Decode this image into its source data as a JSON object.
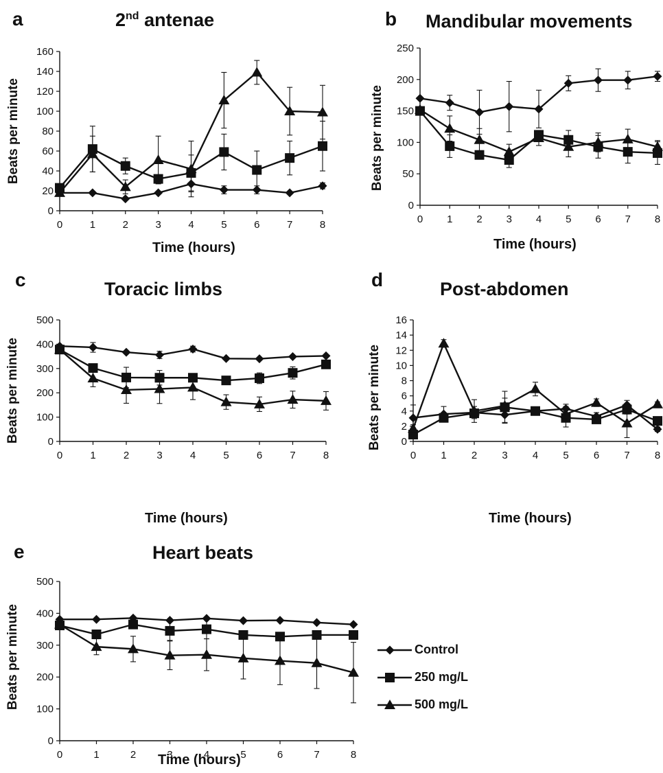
{
  "colors": {
    "line": "#111111",
    "background": "#ffffff"
  },
  "legend": [
    {
      "name": "Control",
      "marker": "diamond"
    },
    {
      "name": "250 mg/L",
      "marker": "square"
    },
    {
      "name": "500 mg/L",
      "marker": "triangle"
    }
  ],
  "chart_data": [
    {
      "panel": "a",
      "type": "line",
      "title": "2",
      "title_sup": "nd",
      "title_rest": " antenae",
      "xlabel": "Time (hours)",
      "ylabel": "Beats per minute",
      "x": [
        0,
        1,
        2,
        3,
        4,
        5,
        6,
        7,
        8
      ],
      "xlim": [
        0,
        8
      ],
      "ylim": [
        0,
        160
      ],
      "yticks": [
        0,
        20,
        40,
        60,
        80,
        100,
        120,
        140,
        160
      ],
      "series": [
        {
          "name": "Control",
          "marker": "diamond",
          "values": [
            18,
            18,
            12,
            18,
            27,
            21,
            21,
            18,
            25
          ],
          "errors": [
            0,
            0,
            0,
            0,
            8,
            4,
            4,
            0,
            3
          ]
        },
        {
          "name": "250 mg/L",
          "marker": "square",
          "values": [
            23,
            62,
            45,
            32,
            38,
            59,
            41,
            53,
            65
          ],
          "errors": [
            0,
            23,
            8,
            0,
            18,
            18,
            19,
            17,
            25
          ]
        },
        {
          "name": "500 mg/L",
          "marker": "triangle",
          "values": [
            18,
            57,
            24,
            51,
            42,
            111,
            139,
            100,
            99
          ],
          "errors": [
            0,
            18,
            7,
            24,
            28,
            28,
            12,
            24,
            27
          ]
        }
      ]
    },
    {
      "panel": "b",
      "type": "line",
      "title": "Mandibular movements",
      "xlabel": "Time (hours)",
      "ylabel": "Beats per minute",
      "x": [
        0,
        1,
        2,
        3,
        4,
        5,
        6,
        7,
        8
      ],
      "xlim": [
        0,
        8
      ],
      "ylim": [
        0,
        250
      ],
      "yticks": [
        0,
        50,
        100,
        150,
        200,
        250
      ],
      "series": [
        {
          "name": "Control",
          "marker": "diamond",
          "values": [
            170,
            163,
            148,
            157,
            153,
            194,
            199,
            199,
            205
          ],
          "errors": [
            0,
            12,
            35,
            40,
            30,
            12,
            18,
            14,
            8
          ]
        },
        {
          "name": "250 mg/L",
          "marker": "square",
          "values": [
            150,
            94,
            80,
            72,
            112,
            104,
            93,
            85,
            83
          ],
          "errors": [
            0,
            18,
            0,
            12,
            0,
            15,
            18,
            18,
            18
          ]
        },
        {
          "name": "500 mg/L",
          "marker": "triangle",
          "values": [
            152,
            122,
            104,
            85,
            107,
            93,
            100,
            105,
            93
          ],
          "errors": [
            0,
            20,
            18,
            12,
            12,
            16,
            15,
            16,
            10
          ]
        }
      ]
    },
    {
      "panel": "c",
      "type": "line",
      "title": "Toracic limbs",
      "xlabel": "Time (hours)",
      "ylabel": "Beats per minute",
      "x": [
        0,
        1,
        2,
        3,
        4,
        5,
        6,
        7,
        8
      ],
      "xlim": [
        0,
        8
      ],
      "ylim": [
        0,
        500
      ],
      "yticks": [
        0,
        100,
        200,
        300,
        400,
        500
      ],
      "series": [
        {
          "name": "Control",
          "marker": "diamond",
          "values": [
            392,
            387,
            367,
            356,
            380,
            341,
            340,
            349,
            352
          ],
          "errors": [
            0,
            20,
            0,
            15,
            12,
            0,
            0,
            0,
            0
          ]
        },
        {
          "name": "250 mg/L",
          "marker": "square",
          "values": [
            378,
            302,
            263,
            262,
            262,
            251,
            260,
            282,
            317
          ],
          "errors": [
            0,
            0,
            42,
            30,
            0,
            0,
            22,
            25,
            0
          ]
        },
        {
          "name": "500 mg/L",
          "marker": "triangle",
          "values": [
            378,
            260,
            212,
            216,
            222,
            162,
            153,
            172,
            167
          ],
          "errors": [
            0,
            35,
            55,
            60,
            50,
            30,
            30,
            35,
            38
          ]
        }
      ]
    },
    {
      "panel": "d",
      "type": "line",
      "title": "Post-abdomen",
      "xlabel": "Time (hours)",
      "ylabel": "Beats per minute",
      "x": [
        0,
        1,
        2,
        3,
        4,
        5,
        6,
        7,
        8
      ],
      "xlim": [
        0,
        8
      ],
      "ylim": [
        0,
        16
      ],
      "yticks": [
        0,
        2,
        4,
        6,
        8,
        10,
        12,
        14,
        16
      ],
      "series": [
        {
          "name": "Control",
          "marker": "diamond",
          "values": [
            3.1,
            3.6,
            3.8,
            3.5,
            4.0,
            4.3,
            3.3,
            4.8,
            1.6
          ],
          "errors": [
            1.7,
            1.0,
            0.8,
            1.0,
            0.5,
            0.6,
            0.5,
            0.6,
            0.3
          ]
        },
        {
          "name": "250 mg/L",
          "marker": "square",
          "values": [
            0.9,
            3.1,
            3.7,
            4.5,
            4.0,
            3.1,
            2.9,
            4.2,
            2.7
          ],
          "errors": [
            0.3,
            0.5,
            0.5,
            2.1,
            0.5,
            1.2,
            0.5,
            0.6,
            0.3
          ]
        },
        {
          "name": "500 mg/L",
          "marker": "triangle",
          "values": [
            1.7,
            12.9,
            4.0,
            4.7,
            6.9,
            3.6,
            5.1,
            2.4,
            4.9
          ],
          "errors": [
            0.5,
            0.5,
            1.5,
            1.0,
            0.9,
            1.0,
            0.5,
            1.9,
            0.3
          ]
        }
      ]
    },
    {
      "panel": "e",
      "type": "line",
      "title": "Heart beats",
      "xlabel": "Time (hours)",
      "ylabel": "Beats per minute",
      "x": [
        0,
        1,
        2,
        3,
        4,
        5,
        6,
        7,
        8
      ],
      "xlim": [
        0,
        8
      ],
      "ylim": [
        0,
        500
      ],
      "yticks": [
        0,
        100,
        200,
        300,
        400,
        500
      ],
      "series": [
        {
          "name": "Control",
          "marker": "diamond",
          "values": [
            381,
            381,
            385,
            378,
            384,
            377,
            378,
            371,
            365
          ],
          "errors": [
            0,
            0,
            0,
            0,
            0,
            0,
            0,
            0,
            0
          ]
        },
        {
          "name": "250 mg/L",
          "marker": "square",
          "values": [
            362,
            334,
            365,
            345,
            350,
            332,
            327,
            332,
            332
          ],
          "errors": [
            0,
            0,
            0,
            30,
            30,
            0,
            0,
            0,
            0
          ]
        },
        {
          "name": "500 mg/L",
          "marker": "triangle",
          "values": [
            365,
            295,
            288,
            268,
            270,
            259,
            251,
            244,
            214
          ],
          "errors": [
            0,
            25,
            40,
            45,
            50,
            65,
            75,
            80,
            95
          ]
        }
      ]
    }
  ]
}
